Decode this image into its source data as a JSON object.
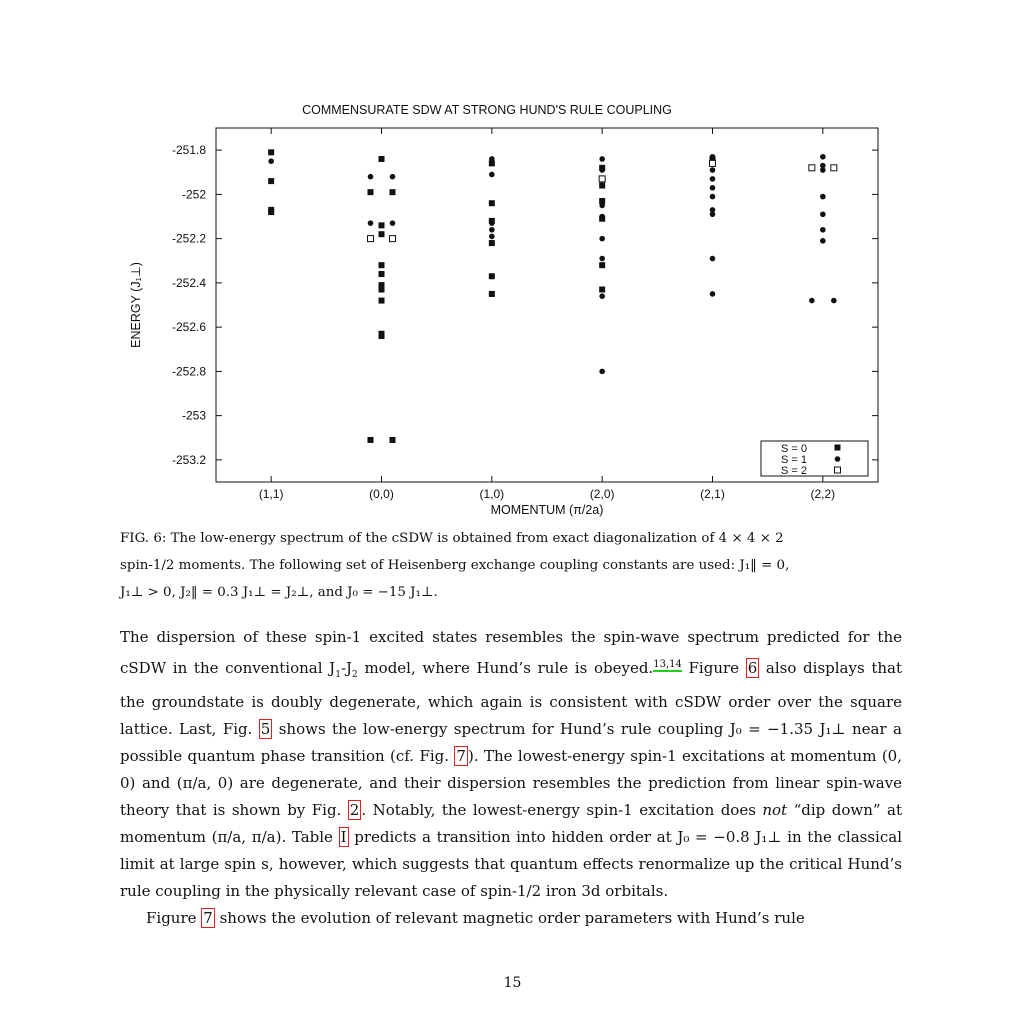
{
  "figure": {
    "chart_data": {
      "type": "scatter",
      "title": "COMMENSURATE SDW AT STRONG HUND'S RULE COUPLING",
      "xlabel": "MOMENTUM (π/2a)",
      "ylabel": "ENERGY (J₁⊥)",
      "categories": [
        "(1,1)",
        "(0,0)",
        "(1,0)",
        "(2,0)",
        "(2,1)",
        "(2,2)"
      ],
      "ylim": [
        -253.3,
        -251.7
      ],
      "yticks": [
        "-251.8",
        "-252",
        "-252.2",
        "-252.4",
        "-252.6",
        "-252.8",
        "-253",
        "-253.2"
      ],
      "ytick_values": [
        -251.8,
        -252.0,
        -252.2,
        -252.4,
        -252.6,
        -252.8,
        -253.0,
        -253.2
      ],
      "grid": false,
      "legend_position": "bottom-right",
      "series": [
        {
          "name": "S = 0",
          "marker": "filled-square",
          "points": [
            [
              0,
              -251.81
            ],
            [
              0,
              -251.94
            ],
            [
              0,
              -252.08
            ],
            [
              0,
              -252.07
            ],
            [
              1,
              -251.84
            ],
            [
              1,
              -251.99
            ],
            [
              1,
              -251.99
            ],
            [
              1,
              -252.14
            ],
            [
              1,
              -252.18
            ],
            [
              1,
              -252.32
            ],
            [
              1,
              -252.36
            ],
            [
              1,
              -252.41
            ],
            [
              1,
              -252.43
            ],
            [
              1,
              -252.48
            ],
            [
              1,
              -252.64
            ],
            [
              1,
              -252.63
            ],
            [
              1,
              -253.11
            ],
            [
              1,
              -253.11
            ],
            [
              2,
              -251.86
            ],
            [
              2,
              -252.04
            ],
            [
              2,
              -252.12
            ],
            [
              2,
              -252.22
            ],
            [
              2,
              -252.37
            ],
            [
              2,
              -252.45
            ],
            [
              3,
              -251.88
            ],
            [
              3,
              -251.93
            ],
            [
              3,
              -251.96
            ],
            [
              3,
              -252.03
            ],
            [
              3,
              -252.11
            ],
            [
              3,
              -252.32
            ],
            [
              3,
              -252.43
            ],
            [
              4,
              -251.84
            ]
          ]
        },
        {
          "name": "S = 1",
          "marker": "filled-circle",
          "points": [
            [
              0,
              -251.85
            ],
            [
              0,
              -251.81
            ],
            [
              1,
              -251.92
            ],
            [
              1,
              -251.92
            ],
            [
              1,
              -252.13
            ],
            [
              1,
              -252.13
            ],
            [
              2,
              -251.84
            ],
            [
              2,
              -251.91
            ],
            [
              2,
              -252.13
            ],
            [
              2,
              -252.16
            ],
            [
              2,
              -252.19
            ],
            [
              3,
              -251.84
            ],
            [
              3,
              -251.89
            ],
            [
              3,
              -252.05
            ],
            [
              3,
              -252.1
            ],
            [
              3,
              -252.2
            ],
            [
              3,
              -252.29
            ],
            [
              3,
              -252.46
            ],
            [
              3,
              -252.8
            ],
            [
              4,
              -251.83
            ],
            [
              4,
              -251.85
            ],
            [
              4,
              -251.89
            ],
            [
              4,
              -251.93
            ],
            [
              4,
              -251.97
            ],
            [
              4,
              -252.01
            ],
            [
              4,
              -252.07
            ],
            [
              4,
              -252.09
            ],
            [
              4,
              -252.29
            ],
            [
              4,
              -252.45
            ],
            [
              5,
              -251.83
            ],
            [
              5,
              -251.87
            ],
            [
              5,
              -251.89
            ],
            [
              5,
              -252.01
            ],
            [
              5,
              -252.09
            ],
            [
              5,
              -252.16
            ],
            [
              5,
              -252.21
            ],
            [
              5,
              -252.48
            ],
            [
              5,
              -252.48
            ]
          ]
        },
        {
          "name": "S = 2",
          "marker": "open-square",
          "points": [
            [
              1,
              -252.2
            ],
            [
              1,
              -252.2
            ],
            [
              3,
              -251.93
            ],
            [
              4,
              -251.86
            ],
            [
              5,
              -251.88
            ],
            [
              5,
              -251.88
            ]
          ]
        }
      ]
    }
  },
  "caption": {
    "label": "FIG. 6:",
    "line1": "The low-energy spectrum of the cSDW is obtained from exact diagonalization of 4 × 4 × 2",
    "line2": "spin-1/2 moments. The following set of Heisenberg exchange coupling constants are used: J₁‖ = 0,",
    "line3": "J₁⊥ > 0, J₂‖ = 0.3 J₁⊥ = J₂⊥, and J₀ = −15 J₁⊥."
  },
  "body": {
    "p1_a": "The dispersion of these spin-1 excited states resembles the spin-wave spectrum predicted for the cSDW in the conventional J",
    "p1_b": "model, where Hund’s rule is obeyed.",
    "cite_1": "13,14",
    "p1_c": " Figure ",
    "ref_fig6": "6",
    "p1_d": " also displays that the groundstate is doubly degenerate, which again is consistent with cSDW order over the square lattice. Last, Fig. ",
    "ref_fig5": "5",
    "p1_e": " shows the low-energy spectrum for Hund’s rule coupling J₀ = −1.35 J₁⊥ near a possible quantum phase transition (cf. Fig. ",
    "ref_fig7a": "7",
    "p1_f": "). The lowest-energy spin-1 excitations at momentum (0, 0) and (π/a, 0) are degenerate, and their dispersion resembles the prediction from linear spin-wave theory that is shown by Fig. ",
    "ref_fig2": "2",
    "p1_g": ". Notably, the lowest-energy spin-1 excitation does ",
    "p1_not": "not",
    "p1_h": " “dip down” at momentum (π/a, π/a). Table ",
    "ref_table1": "I",
    "p1_i": " predicts a transition into hidden order at J₀ = −0.8 J₁⊥ in the classical limit at large spin s, however, which suggests that quantum effects renormalize up the critical Hund’s rule coupling in the physically relevant case of spin-1/2 iron 3d orbitals.",
    "p2_a": "Figure ",
    "ref_fig7b": "7",
    "p2_b": " shows the evolution of relevant magnetic order parameters with Hund’s rule"
  },
  "page_number": "15"
}
